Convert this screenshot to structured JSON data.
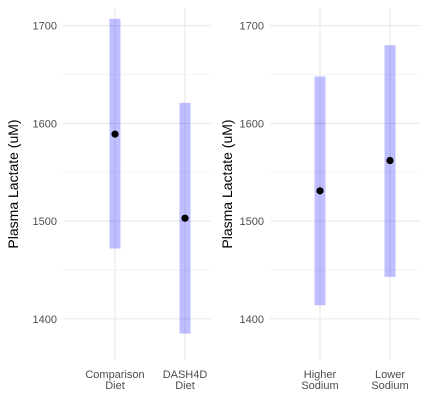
{
  "chart_data": [
    {
      "type": "scatter",
      "subtype": "point-with-interval",
      "title": "",
      "xlabel": "",
      "ylabel": "Plasma Lactate (uM)",
      "ylim": [
        1358,
        1718
      ],
      "yticks": [
        1400,
        1500,
        1600,
        1700
      ],
      "categories": [
        {
          "lines": [
            "Comparison",
            "Diet"
          ]
        },
        {
          "lines": [
            "DASH4D",
            "Diet"
          ]
        }
      ],
      "estimates": [
        1589,
        1503
      ],
      "lower": [
        1472,
        1385
      ],
      "upper": [
        1707,
        1621
      ],
      "grid": true,
      "legend": "none",
      "colors": {
        "interval": "#0000ff",
        "point": "#000000",
        "grid": "#e6e6e6"
      }
    },
    {
      "type": "scatter",
      "subtype": "point-with-interval",
      "title": "",
      "xlabel": "",
      "ylabel": "Plasma Lactate (uM)",
      "ylim": [
        1358,
        1718
      ],
      "yticks": [
        1400,
        1500,
        1600,
        1700
      ],
      "categories": [
        {
          "lines": [
            "Higher",
            "Sodium"
          ]
        },
        {
          "lines": [
            "Lower",
            "Sodium"
          ]
        }
      ],
      "estimates": [
        1531,
        1562
      ],
      "lower": [
        1414,
        1443
      ],
      "upper": [
        1648,
        1680
      ],
      "grid": true,
      "legend": "none",
      "colors": {
        "interval": "#0000ff",
        "point": "#000000",
        "grid": "#e6e6e6"
      }
    }
  ]
}
